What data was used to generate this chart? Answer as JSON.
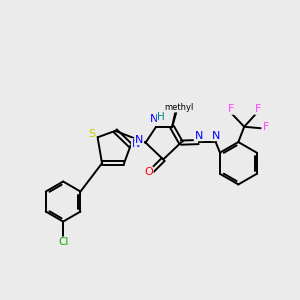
{
  "bg_color": "#ebebeb",
  "bond_color": "#000000",
  "atom_colors": {
    "N": "#0000ff",
    "S": "#cccc00",
    "O": "#ff0000",
    "Cl": "#00aa00",
    "F": "#ff44ff",
    "H": "#008888",
    "C": "#000000"
  },
  "figsize": [
    3.0,
    3.0
  ],
  "dpi": 100
}
